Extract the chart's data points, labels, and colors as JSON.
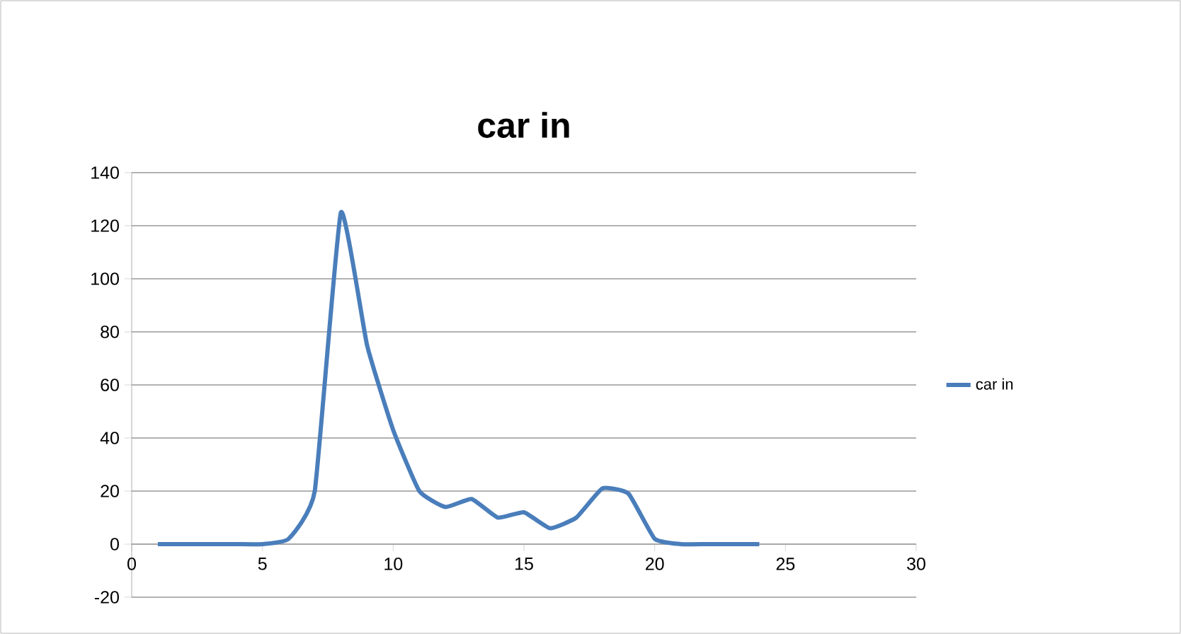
{
  "chart_data": {
    "type": "line",
    "title": "car in",
    "x": [
      1,
      2,
      3,
      4,
      5,
      6,
      7,
      8,
      9,
      10,
      11,
      12,
      13,
      14,
      15,
      16,
      17,
      18,
      19,
      20,
      21,
      22,
      23,
      24
    ],
    "series": [
      {
        "name": "car in",
        "color": "#4a7ebb",
        "values": [
          0,
          0,
          0,
          0,
          0,
          2,
          20,
          125,
          75,
          43,
          20,
          14,
          17,
          10,
          12,
          6,
          10,
          21,
          19,
          2,
          0,
          0,
          0,
          0
        ]
      }
    ],
    "xlim": [
      0,
      30
    ],
    "xticks": [
      0,
      5,
      10,
      15,
      20,
      25,
      30
    ],
    "ylim": [
      -20,
      140
    ],
    "yticks": [
      -20,
      0,
      20,
      40,
      60,
      80,
      100,
      120,
      140
    ],
    "grid": "y",
    "legend": "right",
    "marker": "none",
    "line_style": "solid"
  }
}
